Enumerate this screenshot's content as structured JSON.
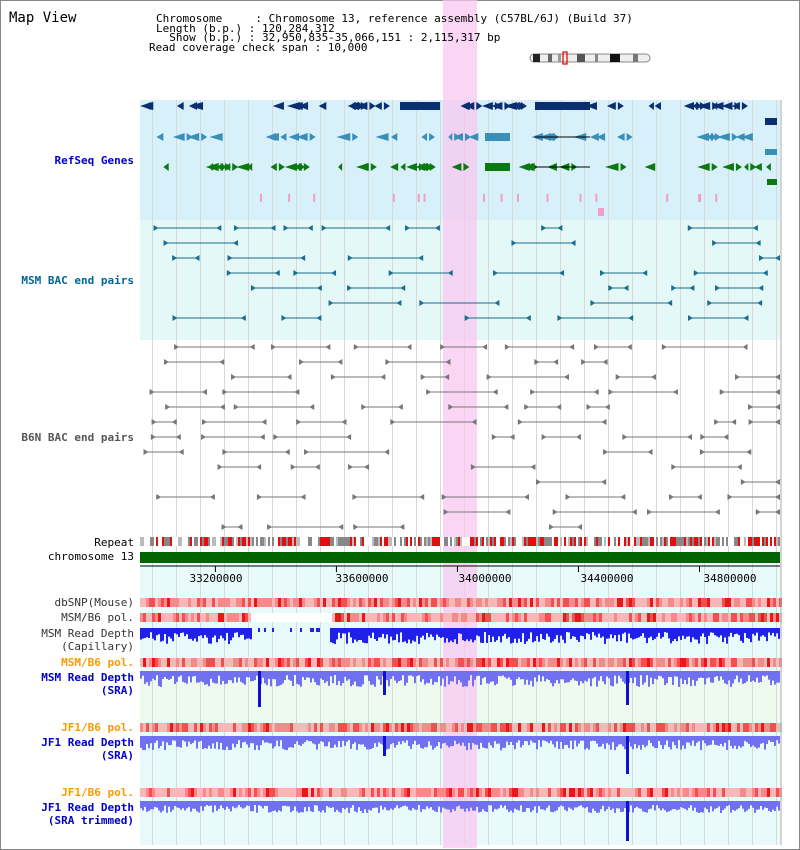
{
  "page": {
    "title": "Map View"
  },
  "info": {
    "chromosome_line": "Chromosome     : Chromosome 13, reference assembly (C57BL/6J) (Build 37)",
    "length_line": "Length (b.p.) : 120,284,312",
    "show_line": "  Show (b.p.) : 32,950,835-35,066,151 : 2,115,317 bp",
    "coverage_line": "Read coverage check span : 10,000"
  },
  "tracks": {
    "refseq_genes": "RefSeq Genes",
    "msm_bac": "MSM BAC end pairs",
    "b6n_bac": "B6N BAC end pairs",
    "repeat": "Repeat",
    "chromosome": "chromosome 13",
    "dbsnp": "dbSNP(Mouse)",
    "msm_b6_pol_1": "MSM/B6 pol.",
    "msm_read_depth_cap_1": "MSM Read Depth",
    "msm_read_depth_cap_2": "(Capillary)",
    "msm_b6_pol_2": "MSM/B6 pol.",
    "msm_read_depth_sra_1": "MSM Read Depth",
    "msm_read_depth_sra_2": "(SRA)",
    "jf1_b6_pol_1": "JF1/B6 pol.",
    "jf1_read_depth_1": "JF1 Read Depth",
    "jf1_read_depth_2": "(SRA)",
    "jf1_b6_pol_2": "JF1/B6 pol.",
    "jf1_read_depth_trim_1": "JF1 Read Depth",
    "jf1_read_depth_trim_2": "(SRA trimmed)"
  },
  "axis": {
    "ticks": [
      "33200000",
      "33600000",
      "34000000",
      "34400000",
      "34800000"
    ],
    "tick_values": [
      33200000,
      33600000,
      34000000,
      34400000,
      34800000
    ],
    "range": [
      32950835,
      35066151
    ]
  },
  "highlight": {
    "start": 34000000,
    "end": 34115000
  },
  "colors": {
    "label_blue": "#0000cc",
    "label_teal": "#006699",
    "label_gray": "#555555",
    "label_orange": "#ff9900",
    "refseq_bg": "#d8f0fa",
    "msm_bg": "#e4f8f8",
    "b6n_bg": "#ffffff",
    "highlight": "#f8c8f0",
    "chromosome": "#006400",
    "depth_blue": "#2020e8",
    "depth_light": "#7070f0"
  }
}
